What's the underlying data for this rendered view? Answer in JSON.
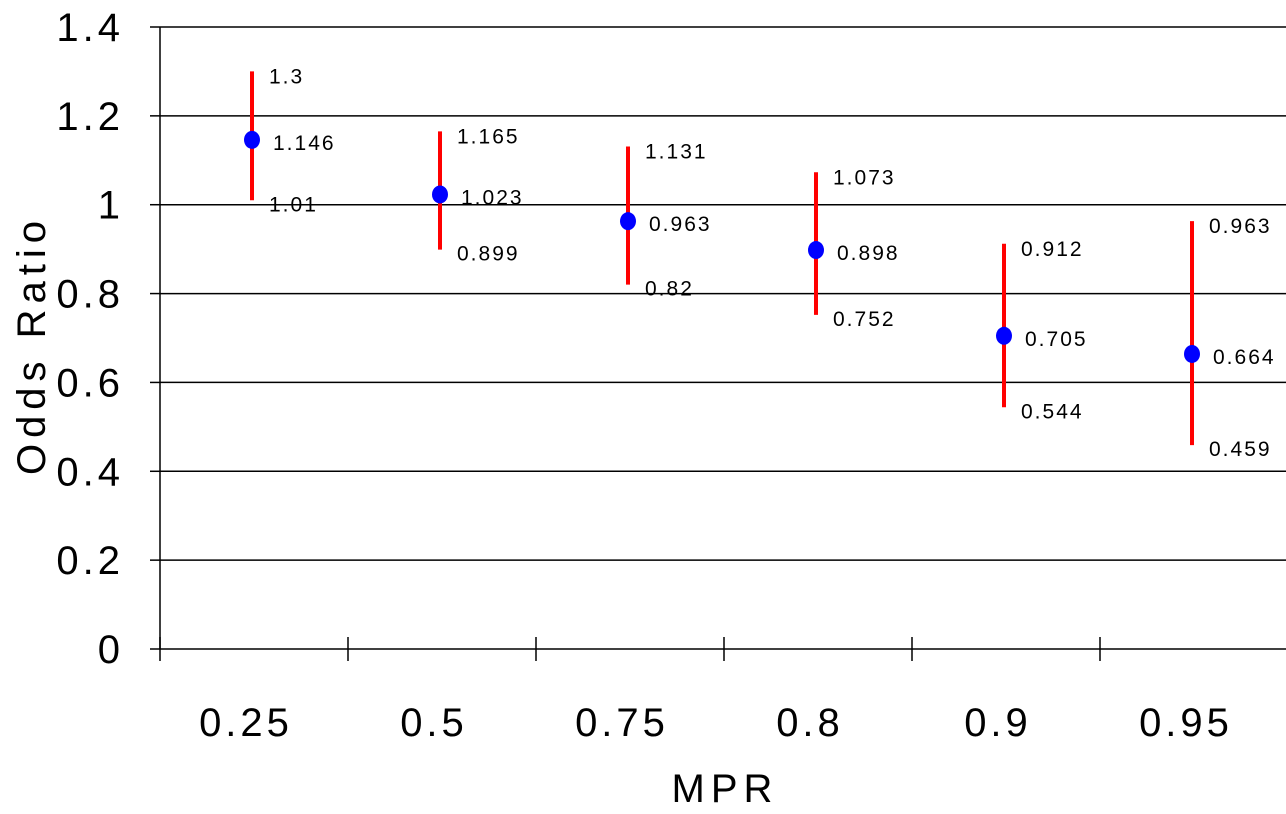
{
  "chart_data": {
    "type": "scatter",
    "subtype": "error-bar",
    "title": "",
    "xlabel": "MPR",
    "ylabel": "Odds Ratio",
    "categories": [
      "0.25",
      "0.5",
      "0.75",
      "0.8",
      "0.9",
      "0.95"
    ],
    "ylim": [
      0,
      1.4
    ],
    "yticks": [
      "0",
      "0.2",
      "0.4",
      "0.6",
      "0.8",
      "1",
      "1.2",
      "1.4"
    ],
    "grid": true,
    "legend": "none",
    "colors": {
      "point": "#0000ff",
      "interval": "#ff0000",
      "grid": "#000000"
    },
    "points": [
      {
        "x": "0.25",
        "estimate": 1.146,
        "upper": 1.3,
        "lower": 1.01,
        "estimate_label": "1.146",
        "upper_label": "1.3",
        "lower_label": "1.01"
      },
      {
        "x": "0.5",
        "estimate": 1.023,
        "upper": 1.165,
        "lower": 0.899,
        "estimate_label": "1.023",
        "upper_label": "1.165",
        "lower_label": "0.899"
      },
      {
        "x": "0.75",
        "estimate": 0.963,
        "upper": 1.131,
        "lower": 0.82,
        "estimate_label": "0.963",
        "upper_label": "1.131",
        "lower_label": "0.82"
      },
      {
        "x": "0.8",
        "estimate": 0.898,
        "upper": 1.073,
        "lower": 0.752,
        "estimate_label": "0.898",
        "upper_label": "1.073",
        "lower_label": "0.752"
      },
      {
        "x": "0.9",
        "estimate": 0.705,
        "upper": 0.912,
        "lower": 0.544,
        "estimate_label": "0.705",
        "upper_label": "0.912",
        "lower_label": "0.544"
      },
      {
        "x": "0.95",
        "estimate": 0.664,
        "upper": 0.963,
        "lower": 0.459,
        "estimate_label": "0.664",
        "upper_label": "0.963",
        "lower_label": "0.459"
      }
    ]
  }
}
